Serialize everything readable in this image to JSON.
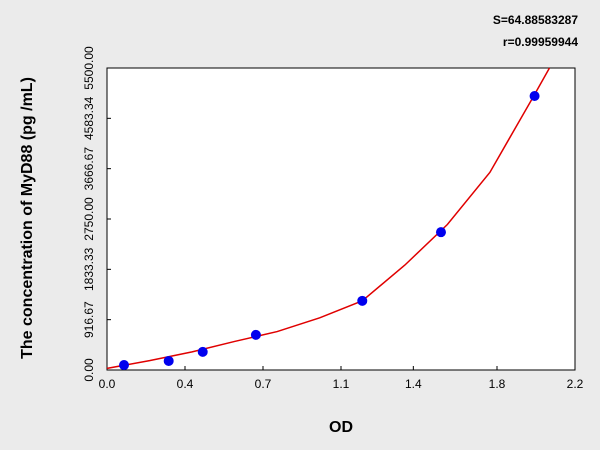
{
  "chart_data": {
    "type": "scatter",
    "annotations": [
      "S=64.88583287",
      "r=0.99959944"
    ],
    "x_label": "OD",
    "y_label": "The concentration of MyD88 (pg /mL)",
    "xlim": [
      0,
      2.2
    ],
    "ylim": [
      0,
      5500
    ],
    "xticks": [
      {
        "value": 0,
        "label": "0.0"
      },
      {
        "value": 0.3667,
        "label": "0.4"
      },
      {
        "value": 0.7333,
        "label": "0.7"
      },
      1.1,
      {
        "value": 1.44,
        "label": "1.4"
      },
      {
        "value": 1.8333,
        "label": "1.8"
      },
      2.2
    ],
    "yticks": [
      {
        "value": 0,
        "label": "0.00"
      },
      916.67,
      1833.33,
      {
        "value": 2750,
        "label": "2750.00"
      },
      3666.67,
      4583.34,
      {
        "value": 5500,
        "label": "5500.00"
      }
    ],
    "series": [
      {
        "color": "#0000ee",
        "x": [
          0.08,
          0.29,
          0.45,
          0.7,
          1.2,
          1.57,
          2.01
        ],
        "values": [
          90,
          165,
          330,
          640,
          1260,
          2510,
          4990
        ]
      }
    ],
    "curve": {
      "color": "#e00000",
      "x": [
        0,
        0.2,
        0.4,
        0.6,
        0.8,
        1.0,
        1.2,
        1.4,
        1.6,
        1.8,
        2.0,
        2.08
      ],
      "values": [
        30,
        170,
        330,
        520,
        700,
        950,
        1260,
        1910,
        2650,
        3600,
        4950,
        5500
      ]
    }
  }
}
